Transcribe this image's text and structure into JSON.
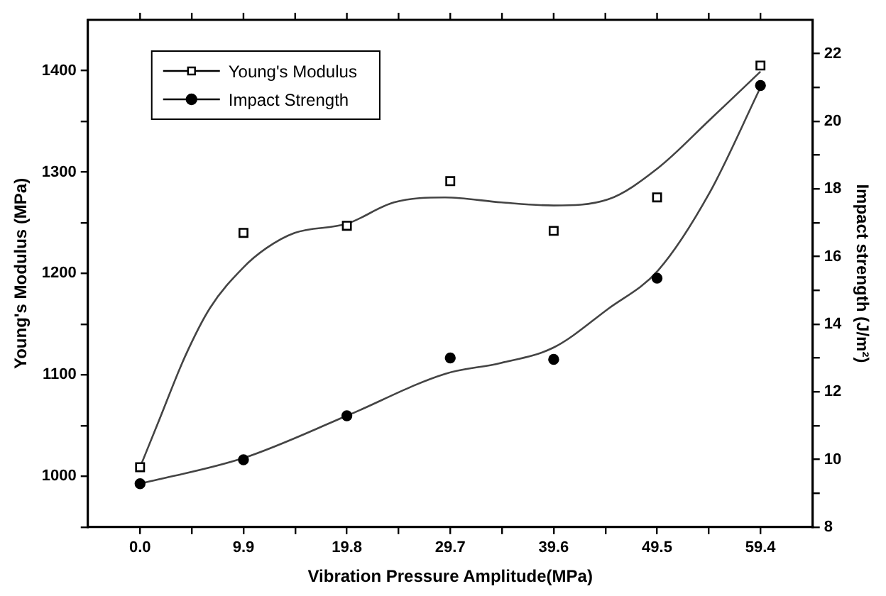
{
  "chart_data": {
    "type": "scatter",
    "xlabel": "Vibration Pressure Amplitude(MPa)",
    "ylabel": "Young's Modulus (MPa)",
    "y2label": "Impact strength (J/m²)",
    "xlim": [
      -5,
      64.4
    ],
    "xticks": [
      {
        "value": 0,
        "label": "0.0"
      },
      {
        "value": 4.95,
        "label": null
      },
      9.9,
      {
        "value": 14.85,
        "label": null
      },
      19.8,
      {
        "value": 24.75,
        "label": null
      },
      29.7,
      {
        "value": 34.65,
        "label": null
      },
      39.6,
      {
        "value": 44.55,
        "label": null
      },
      49.5,
      {
        "value": 54.45,
        "label": null
      },
      59.4
    ],
    "ylim": [
      950,
      1450
    ],
    "yticks": [
      {
        "value": 950,
        "label": null
      },
      1000,
      {
        "value": 1050,
        "label": null
      },
      1100,
      {
        "value": 1150,
        "label": null
      },
      1200,
      {
        "value": 1250,
        "label": null
      },
      1300,
      {
        "value": 1350,
        "label": null
      },
      1400
    ],
    "y2lim": [
      8,
      23
    ],
    "y2ticks": [
      8,
      {
        "value": 9,
        "label": null
      },
      10,
      {
        "value": 11,
        "label": null
      },
      12,
      {
        "value": 13,
        "label": null
      },
      14,
      {
        "value": 15,
        "label": null
      },
      16,
      {
        "value": 17,
        "label": null
      },
      18,
      {
        "value": 19,
        "label": null
      },
      20,
      {
        "value": 21,
        "label": null
      },
      22
    ],
    "grid": false,
    "legend": "top left",
    "series": [
      {
        "name": "Young's Modulus",
        "type": "scatter",
        "marker": "square",
        "color": "#000000",
        "axis": "y",
        "x": [
          0,
          9.9,
          19.8,
          29.7,
          39.6,
          49.5,
          59.4
        ],
        "values": [
          1009,
          1240,
          1247,
          1291,
          1242,
          1275,
          1405
        ]
      },
      {
        "name": "Impact Strength",
        "type": "scatter",
        "marker": "circle",
        "color": "#000000",
        "axis": "y2",
        "x": [
          0,
          9.9,
          19.8,
          29.7,
          39.6,
          49.5,
          59.4
        ],
        "values": [
          9.28,
          9.99,
          11.29,
          13.0,
          12.96,
          15.36,
          21.06
        ]
      },
      {
        "type": "line",
        "marker": "none",
        "color": "#444444",
        "axis": "y",
        "x": [
          0,
          1.85,
          4.3,
          6.7,
          9.9,
          12.1,
          14.8,
          19.8,
          24.3,
          29.2,
          34.6,
          39.6,
          44.8,
          49.6,
          54.5,
          59.4
        ],
        "values": [
          1009,
          1056,
          1118,
          1166,
          1206,
          1225,
          1240,
          1249,
          1270,
          1275,
          1270,
          1267,
          1273,
          1304,
          1351,
          1399
        ]
      },
      {
        "type": "line",
        "marker": "none",
        "color": "#444444",
        "axis": "y2",
        "x": [
          0,
          9.9,
          19.8,
          29.2,
          34.5,
          39.6,
          44.8,
          49.6,
          54.5,
          59.4
        ],
        "values": [
          9.28,
          10.04,
          11.29,
          12.53,
          12.85,
          13.31,
          14.45,
          15.59,
          17.87,
          21.0
        ]
      }
    ]
  }
}
